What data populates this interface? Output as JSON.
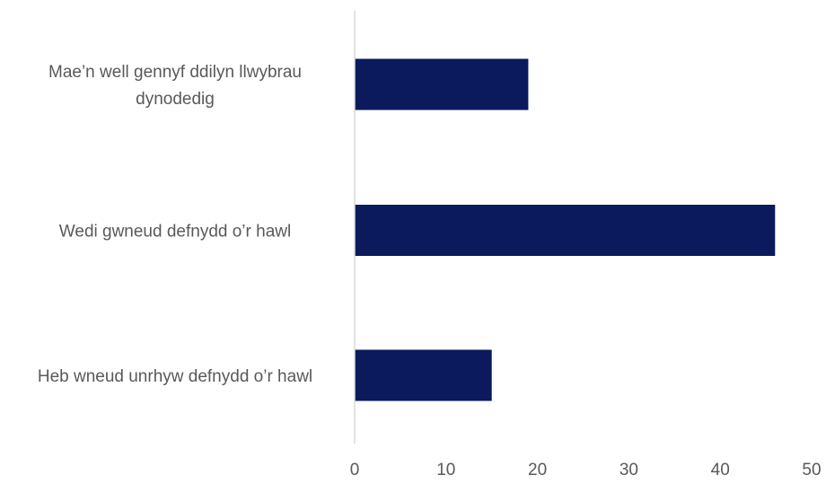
{
  "chart_data": {
    "type": "bar",
    "orientation": "horizontal",
    "categories": [
      [
        "Mae’n well gennyf ddilyn llwybrau",
        "dynodedig"
      ],
      [
        "Wedi gwneud defnydd o’r hawl"
      ],
      [
        "Heb wneud unrhyw defnydd o’r hawl"
      ]
    ],
    "values": [
      19,
      46,
      15
    ],
    "xlim": [
      0,
      50
    ],
    "xticks": [
      "0",
      "10",
      "20",
      "30",
      "40",
      "50"
    ],
    "title": "",
    "xlabel": "",
    "ylabel": "",
    "grid": false,
    "legend": "none",
    "bar_color": "#0b1a5c",
    "axis_color": "#d9d9d9"
  }
}
